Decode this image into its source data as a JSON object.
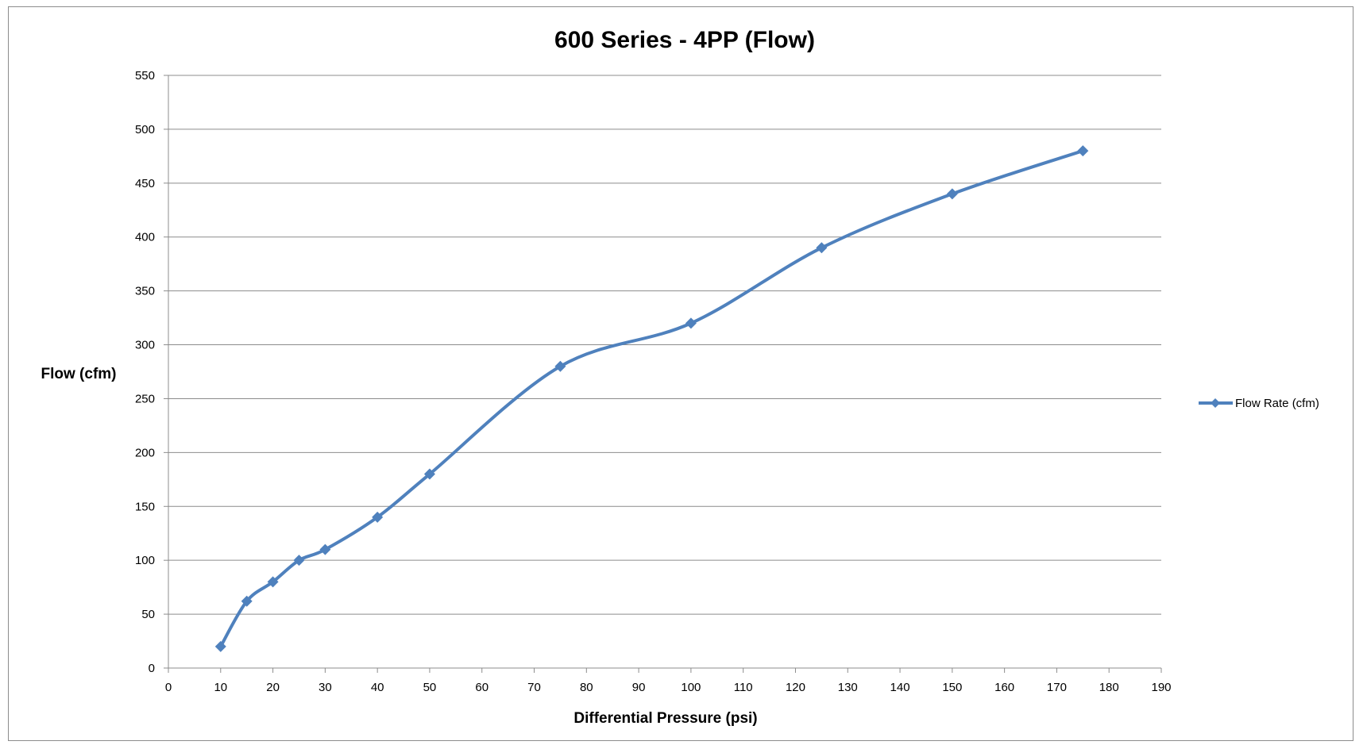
{
  "chart_data": {
    "type": "line",
    "title": "600 Series - 4PP (Flow)",
    "xlabel": "Differential Pressure (psi)",
    "ylabel": "Flow (cfm)",
    "xlim": [
      0,
      190
    ],
    "ylim": [
      0,
      550
    ],
    "x_ticks": [
      0,
      10,
      20,
      30,
      40,
      50,
      60,
      70,
      80,
      90,
      100,
      110,
      120,
      130,
      140,
      150,
      160,
      170,
      180,
      190
    ],
    "y_ticks": [
      0,
      50,
      100,
      150,
      200,
      250,
      300,
      350,
      400,
      450,
      500,
      550
    ],
    "grid": "horizontal",
    "legend_position": "right",
    "series": [
      {
        "name": "Flow Rate (cfm)",
        "color": "#4f81bd",
        "marker": "diamond",
        "smooth": true,
        "x": [
          10,
          15,
          20,
          25,
          30,
          40,
          50,
          75,
          100,
          125,
          150,
          175
        ],
        "y": [
          20,
          62,
          80,
          100,
          110,
          140,
          180,
          280,
          320,
          390,
          440,
          480
        ]
      }
    ]
  }
}
